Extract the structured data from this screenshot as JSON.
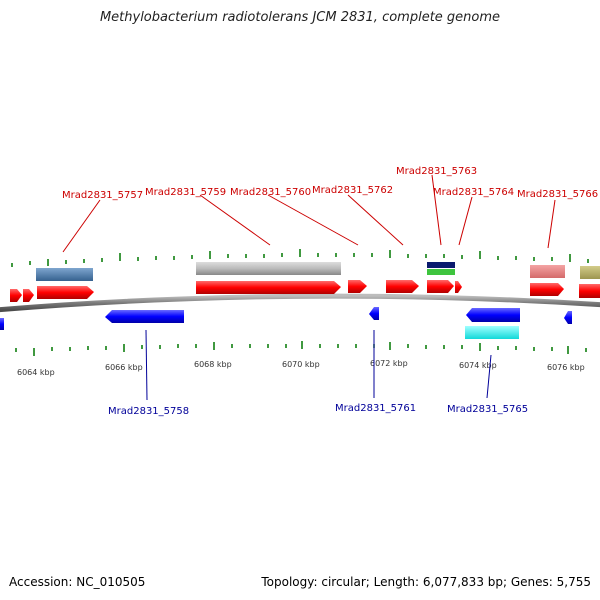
{
  "title": "Methylobacterium radiotolerans JCM 2831, complete genome",
  "footer": {
    "accession": "Accession: NC_010505",
    "summary": "Topology: circular; Length: 6,077,833 bp; Genes: 5,755"
  },
  "colors": {
    "forward": "#ff0000",
    "reverse": "#0000ff",
    "forward_label": "#cc0000",
    "reverse_label": "#000099",
    "backbone": "#7a7a7a",
    "tick": "#007700"
  },
  "axis": {
    "unit": "kbp",
    "labels": [
      "6064 kbp",
      "6066 kbp",
      "6068 kbp",
      "6070 kbp",
      "6072 kbp",
      "6074 kbp",
      "6076 kbp"
    ]
  },
  "forward_labels": [
    "Mrad2831_5757",
    "Mrad2831_5759",
    "Mrad2831_5760",
    "Mrad2831_5762",
    "Mrad2831_5763",
    "Mrad2831_5764",
    "Mrad2831_5766"
  ],
  "reverse_labels": [
    "Mrad2831_5758",
    "Mrad2831_5761",
    "Mrad2831_5765"
  ]
}
